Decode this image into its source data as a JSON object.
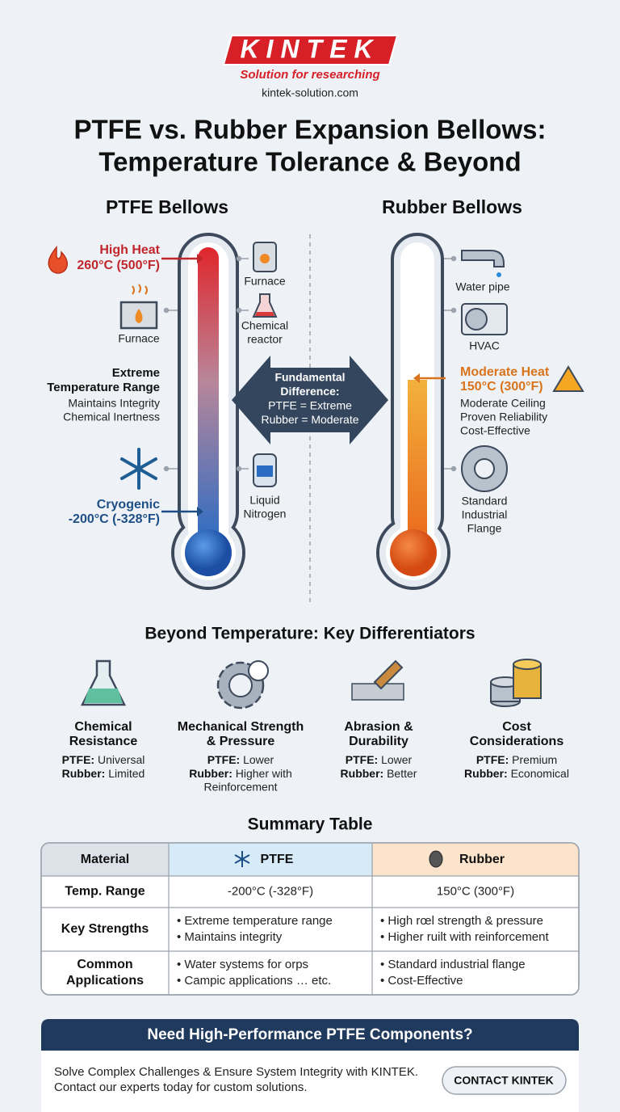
{
  "header": {
    "logo": "KINTEK",
    "tagline": "Solution for researching",
    "website": "kintek-solution.com",
    "title": [
      "PTFE vs. Rubber Expansion Bellows:",
      "Temperature Tolerance & Beyond"
    ]
  },
  "ptfe": {
    "heading": "PTFE Bellows",
    "high_heat": {
      "label": "High Heat",
      "temperature": "260°C (500°F)"
    },
    "range": {
      "title": [
        "Extreme",
        "Temperature Range"
      ],
      "points": [
        "Maintains Integrity",
        "Chemical Inertness"
      ]
    },
    "cryogenic": {
      "label": "Cryogenic",
      "temperature": "-200°C (-328°F)"
    },
    "applications": [
      {
        "label": [
          "Furnace"
        ]
      },
      {
        "label": [
          "Furnace"
        ]
      },
      {
        "label": [
          "Chemical",
          "reactor"
        ]
      },
      {
        "label": [
          "Liquid",
          "Nitrogen"
        ]
      }
    ]
  },
  "difference": {
    "lines": [
      "Fundamental",
      "Difference:",
      "PTFE = Extreme",
      "Rubber = Moderate"
    ]
  },
  "rubber": {
    "heading": "Rubber Bellows",
    "moderate_heat": {
      "label": "Moderate Heat",
      "temperature": "150°C (300°F)"
    },
    "points": [
      "Moderate Ceiling",
      "Proven Reliability",
      "Cost-Effective"
    ],
    "applications": [
      {
        "label": [
          "Water pipe"
        ]
      },
      {
        "label": [
          "HVAC"
        ]
      },
      {
        "label": [
          "Standard",
          "Industrial",
          "Flange"
        ]
      }
    ]
  },
  "differentiators": {
    "title": "Beyond Temperature: Key Differentiators",
    "items": [
      {
        "title": [
          "Chemical",
          "Resistance"
        ],
        "ptfe": {
          "label": "PTFE:",
          "value": [
            "Universal"
          ]
        },
        "rubber": {
          "label": "Rubber:",
          "value": [
            "Limited"
          ]
        }
      },
      {
        "title": [
          "Mechanical Strength",
          "& Pressure"
        ],
        "ptfe": {
          "label": "PTFE:",
          "value": [
            "Lower"
          ]
        },
        "rubber": {
          "label": "Rubber:",
          "value": [
            "Higher with",
            "Reinforcement"
          ]
        }
      },
      {
        "title": [
          "Abrasion &",
          "Durability"
        ],
        "ptfe": {
          "label": "PTFE:",
          "value": [
            "Lower"
          ]
        },
        "rubber": {
          "label": "Rubber:",
          "value": [
            "Better"
          ]
        }
      },
      {
        "title": [
          "Cost",
          "Considerations"
        ],
        "ptfe": {
          "label": "PTFE:",
          "value": [
            "Premium"
          ]
        },
        "rubber": {
          "label": "Rubber:",
          "value": [
            "Economical"
          ]
        }
      }
    ]
  },
  "summary": {
    "title": "Summary Table",
    "header": [
      "Material",
      "PTFE",
      "Rubber"
    ],
    "rows": [
      {
        "label": "Temp. Range",
        "ptfe": [
          "-200°C (-328°F)"
        ],
        "rubber": [
          "150°C (300°F)"
        ]
      },
      {
        "label": "Key Strengths",
        "ptfe": [
          "• Extreme temperature range",
          "• Maintains integrity"
        ],
        "rubber": [
          "• High rœl strength & pressure",
          "• Higher ruilt with reinforcement"
        ]
      },
      {
        "label": [
          "Common",
          "Applications"
        ],
        "ptfe": [
          "• Water systems for orps",
          "• Campic applications … etc."
        ],
        "rubber": [
          "• Standard industrial flange",
          "• Cost-Effective"
        ]
      }
    ]
  },
  "cta": {
    "heading": "Need High-Performance PTFE Components?",
    "text": [
      "Solve Complex Challenges & Ensure System Integrity with KINTEK.",
      "Contact our experts today for custom solutions."
    ],
    "button": "CONTACT KINTEK"
  }
}
